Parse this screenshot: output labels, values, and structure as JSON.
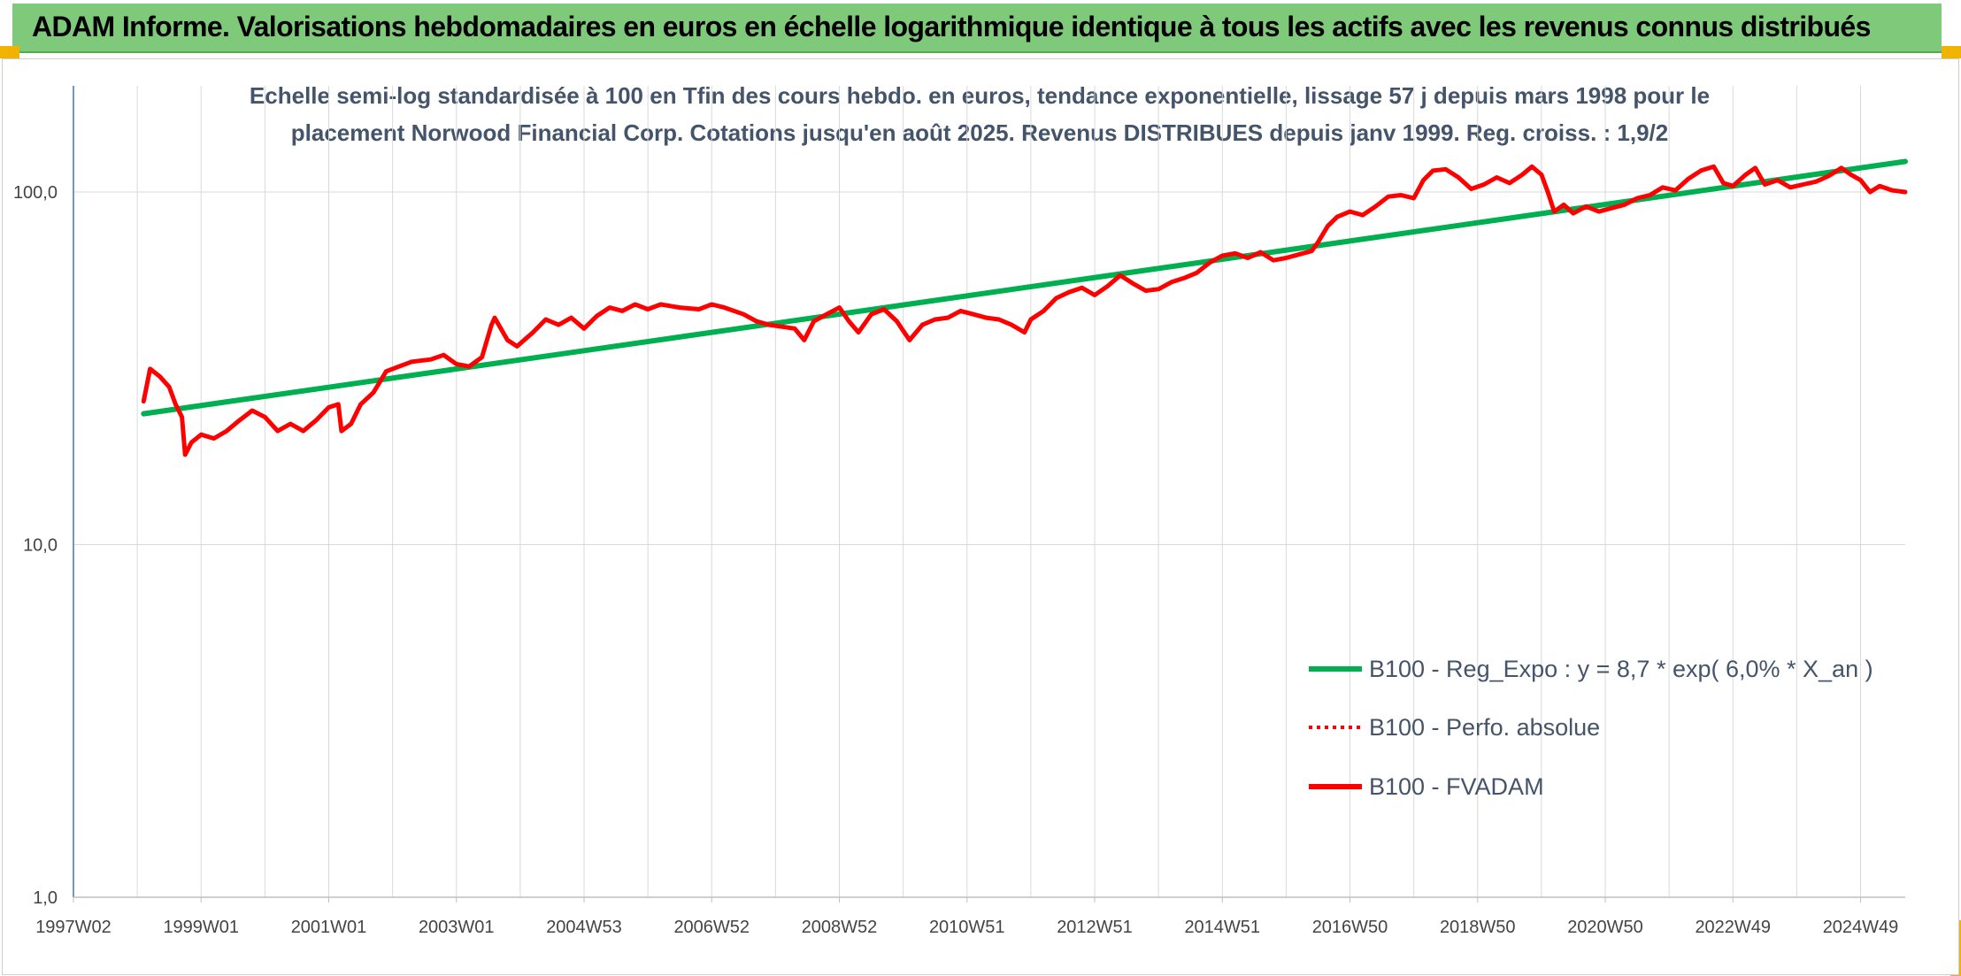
{
  "banner": {
    "title": "ADAM Informe. Valorisations hebdomadaires en euros en échelle logarithmique identique à tous les actifs avec les revenus connus distribués"
  },
  "colors": {
    "banner_bg": "#7fc97a",
    "corner_accent": "#f0b400",
    "trend": "#00b050",
    "price": "#ff0000",
    "subtitle": "#44546a",
    "axis": "#4472c4",
    "grid": "#d9d9d9"
  },
  "chart_data": {
    "type": "line",
    "subtitle_line1": "Echelle semi-log standardisée à 100 en Tfin des cours hebdo. en euros, tendance exponentielle, lissage 57 j depuis mars 1998 pour le",
    "subtitle_line2": "placement Norwood Financial Corp. Cotations jusqu'en août 2025. Revenus DISTRIBUES depuis janv 1999. Reg. croiss. : 1,9/2",
    "y_scale": "log",
    "ylim": [
      1,
      200
    ],
    "y_ticks": [
      {
        "value": 1,
        "label": "1,0"
      },
      {
        "value": 10,
        "label": "10,0"
      },
      {
        "value": 100,
        "label": "100,0"
      }
    ],
    "xlim": [
      1997.0,
      2025.7
    ],
    "x_ticks": [
      {
        "value": 1997.0,
        "label": "1997W02"
      },
      {
        "value": 1999.0,
        "label": "1999W01"
      },
      {
        "value": 2001.0,
        "label": "2001W01"
      },
      {
        "value": 2003.0,
        "label": "2003W01"
      },
      {
        "value": 2005.0,
        "label": "2004W53"
      },
      {
        "value": 2007.0,
        "label": "2006W52"
      },
      {
        "value": 2009.0,
        "label": "2008W52"
      },
      {
        "value": 2011.0,
        "label": "2010W51"
      },
      {
        "value": 2013.0,
        "label": "2012W51"
      },
      {
        "value": 2015.0,
        "label": "2014W51"
      },
      {
        "value": 2017.0,
        "label": "2016W50"
      },
      {
        "value": 2019.0,
        "label": "2018W50"
      },
      {
        "value": 2021.0,
        "label": "2020W50"
      },
      {
        "value": 2023.0,
        "label": "2022W49"
      },
      {
        "value": 2025.0,
        "label": "2024W49"
      }
    ],
    "grid": true,
    "legend_position": "bottom-right",
    "series": [
      {
        "name": "B100 - Reg_Expo : y = 8,7 * exp( 6,0% *  X_an )",
        "style": "solid-thick",
        "color": "#00b050",
        "points": [
          [
            1998.1,
            23.5
          ],
          [
            2025.7,
            122
          ]
        ]
      },
      {
        "name": "B100 - Perfo. absolue",
        "style": "dotted",
        "color": "#ff0000",
        "points": []
      },
      {
        "name": "B100 - FVADAM",
        "style": "solid-thick",
        "color": "#ff0000",
        "points": [
          [
            1998.1,
            25.5
          ],
          [
            1998.2,
            31.5
          ],
          [
            1998.35,
            30.0
          ],
          [
            1998.5,
            28.0
          ],
          [
            1998.6,
            25.0
          ],
          [
            1998.7,
            23.0
          ],
          [
            1998.75,
            18.0
          ],
          [
            1998.85,
            19.5
          ],
          [
            1999.0,
            20.5
          ],
          [
            1999.2,
            20.0
          ],
          [
            1999.4,
            21.0
          ],
          [
            1999.6,
            22.5
          ],
          [
            1999.8,
            24.0
          ],
          [
            2000.0,
            23.0
          ],
          [
            2000.2,
            21.0
          ],
          [
            2000.4,
            22.0
          ],
          [
            2000.6,
            21.0
          ],
          [
            2000.8,
            22.5
          ],
          [
            2001.0,
            24.5
          ],
          [
            2001.15,
            25.0
          ],
          [
            2001.2,
            21.0
          ],
          [
            2001.35,
            22.0
          ],
          [
            2001.5,
            25.0
          ],
          [
            2001.7,
            27.0
          ],
          [
            2001.9,
            31.0
          ],
          [
            2002.1,
            32.0
          ],
          [
            2002.3,
            33.0
          ],
          [
            2002.6,
            33.5
          ],
          [
            2002.8,
            34.5
          ],
          [
            2003.0,
            32.5
          ],
          [
            2003.2,
            32.0
          ],
          [
            2003.4,
            34.0
          ],
          [
            2003.55,
            42.0
          ],
          [
            2003.6,
            44.0
          ],
          [
            2003.8,
            38.0
          ],
          [
            2003.95,
            36.5
          ],
          [
            2004.2,
            40.0
          ],
          [
            2004.4,
            43.5
          ],
          [
            2004.6,
            42.0
          ],
          [
            2004.8,
            44.0
          ],
          [
            2005.0,
            41.0
          ],
          [
            2005.2,
            44.5
          ],
          [
            2005.4,
            47.0
          ],
          [
            2005.6,
            46.0
          ],
          [
            2005.8,
            48.0
          ],
          [
            2006.0,
            46.5
          ],
          [
            2006.2,
            48.0
          ],
          [
            2006.5,
            47.0
          ],
          [
            2006.8,
            46.5
          ],
          [
            2007.0,
            48.0
          ],
          [
            2007.2,
            47.0
          ],
          [
            2007.5,
            45.0
          ],
          [
            2007.7,
            43.0
          ],
          [
            2007.9,
            42.0
          ],
          [
            2008.1,
            41.5
          ],
          [
            2008.3,
            41.0
          ],
          [
            2008.45,
            38.0
          ],
          [
            2008.6,
            43.0
          ],
          [
            2008.8,
            45.0
          ],
          [
            2009.0,
            47.0
          ],
          [
            2009.15,
            43.0
          ],
          [
            2009.3,
            40.0
          ],
          [
            2009.5,
            45.0
          ],
          [
            2009.7,
            46.5
          ],
          [
            2009.9,
            43.0
          ],
          [
            2010.1,
            38.0
          ],
          [
            2010.3,
            42.0
          ],
          [
            2010.5,
            43.5
          ],
          [
            2010.7,
            44.0
          ],
          [
            2010.9,
            46.0
          ],
          [
            2011.1,
            45.0
          ],
          [
            2011.3,
            44.0
          ],
          [
            2011.5,
            43.5
          ],
          [
            2011.7,
            42.0
          ],
          [
            2011.9,
            40.0
          ],
          [
            2012.0,
            43.5
          ],
          [
            2012.2,
            46.0
          ],
          [
            2012.4,
            50.0
          ],
          [
            2012.6,
            52.0
          ],
          [
            2012.8,
            53.5
          ],
          [
            2013.0,
            51.0
          ],
          [
            2013.2,
            54.0
          ],
          [
            2013.4,
            58.0
          ],
          [
            2013.6,
            55.0
          ],
          [
            2013.8,
            52.5
          ],
          [
            2014.0,
            53.0
          ],
          [
            2014.2,
            55.5
          ],
          [
            2014.4,
            57.0
          ],
          [
            2014.6,
            59.0
          ],
          [
            2014.8,
            63.0
          ],
          [
            2015.0,
            66.0
          ],
          [
            2015.2,
            67.0
          ],
          [
            2015.4,
            65.0
          ],
          [
            2015.6,
            67.5
          ],
          [
            2015.8,
            64.0
          ],
          [
            2016.0,
            65.0
          ],
          [
            2016.2,
            66.5
          ],
          [
            2016.4,
            68.0
          ],
          [
            2016.5,
            72.0
          ],
          [
            2016.65,
            80.0
          ],
          [
            2016.8,
            85.0
          ],
          [
            2017.0,
            88.0
          ],
          [
            2017.2,
            86.0
          ],
          [
            2017.4,
            91.0
          ],
          [
            2017.6,
            97.0
          ],
          [
            2017.8,
            98.0
          ],
          [
            2018.0,
            96.0
          ],
          [
            2018.15,
            108.0
          ],
          [
            2018.3,
            115.0
          ],
          [
            2018.5,
            116.0
          ],
          [
            2018.7,
            110.0
          ],
          [
            2018.9,
            102.0
          ],
          [
            2019.1,
            105.0
          ],
          [
            2019.3,
            110.0
          ],
          [
            2019.5,
            106.0
          ],
          [
            2019.7,
            112.0
          ],
          [
            2019.85,
            118.0
          ],
          [
            2020.0,
            112.0
          ],
          [
            2020.1,
            100.0
          ],
          [
            2020.2,
            88.0
          ],
          [
            2020.35,
            92.0
          ],
          [
            2020.5,
            87.0
          ],
          [
            2020.7,
            91.0
          ],
          [
            2020.9,
            88.0
          ],
          [
            2021.1,
            90.0
          ],
          [
            2021.3,
            92.0
          ],
          [
            2021.5,
            96.0
          ],
          [
            2021.7,
            98.0
          ],
          [
            2021.9,
            103.0
          ],
          [
            2022.1,
            101.0
          ],
          [
            2022.3,
            109.0
          ],
          [
            2022.5,
            115.0
          ],
          [
            2022.7,
            118.0
          ],
          [
            2022.85,
            106.0
          ],
          [
            2023.0,
            104.0
          ],
          [
            2023.2,
            112.0
          ],
          [
            2023.35,
            117.0
          ],
          [
            2023.5,
            105.0
          ],
          [
            2023.7,
            108.0
          ],
          [
            2023.9,
            103.0
          ],
          [
            2024.1,
            105.0
          ],
          [
            2024.3,
            107.0
          ],
          [
            2024.5,
            111.0
          ],
          [
            2024.7,
            117.0
          ],
          [
            2024.85,
            112.0
          ],
          [
            2025.0,
            108.0
          ],
          [
            2025.15,
            100.0
          ],
          [
            2025.3,
            104.0
          ],
          [
            2025.5,
            101.0
          ],
          [
            2025.7,
            100.0
          ]
        ]
      }
    ]
  }
}
